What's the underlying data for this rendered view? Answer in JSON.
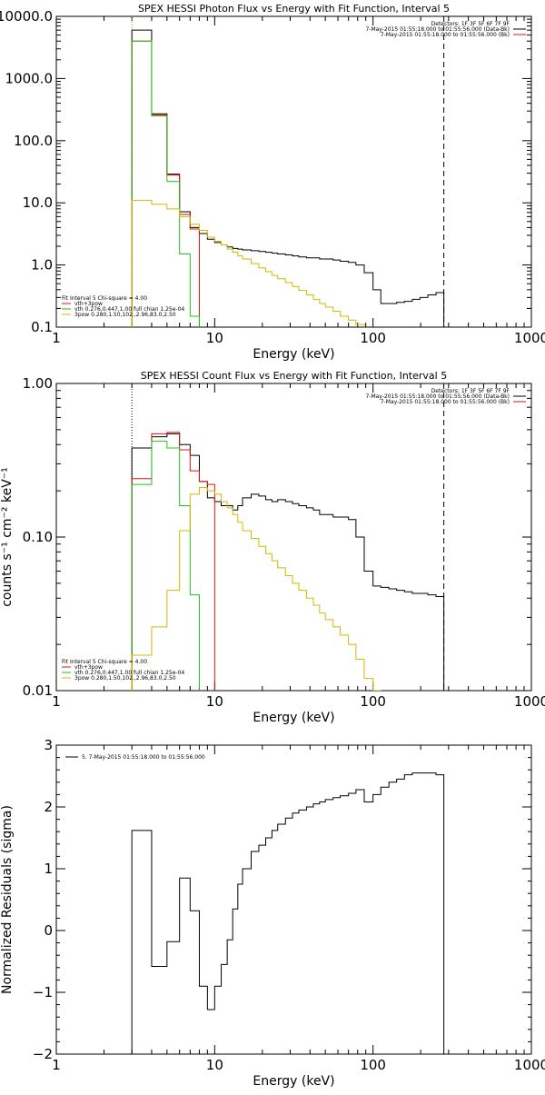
{
  "chart_data": [
    {
      "type": "line",
      "title": "SPEX HESSI Photon Flux vs Energy with Fit Function, Interval 5",
      "xlabel": "Energy (keV)",
      "ylabel": "",
      "xscale": "log",
      "yscale": "log",
      "xlim": [
        1,
        1000
      ],
      "ylim": [
        0.1,
        10000
      ],
      "xtick_labels": [
        "1",
        "10",
        "100",
        "1000"
      ],
      "ytick_labels": [
        "10000.0",
        "1000.0",
        "100.0",
        "10.0",
        "1.0",
        "0.1"
      ],
      "vlines": [
        {
          "x": 3.0,
          "style": "dotted",
          "color": "#e08000"
        },
        {
          "x": 280,
          "style": "dashed",
          "color": "#000000"
        }
      ],
      "header_lines": [
        "Detectors: 1F 3F 5F 6F 7F 9F",
        "7-May-2015 01:55:18.000 to 01:55:56.000 (Data-Bk)",
        "7-May-2015 01:55:18.000 to 01:55:56.000 (Bk)"
      ],
      "legend": [
        "Fit Interval  5    Chi-square = 4.00",
        "vth+3pow",
        "vth 0.276,0.447,1.00  full chian 1.25e-04",
        "3pow 0.280,1.50,102.,2.96,83.0,2.50"
      ],
      "series": [
        {
          "color": "#000000",
          "edges": [
            3.0,
            4.0,
            5.0,
            6.0,
            7.0,
            8.0,
            9.0,
            10.0,
            11.0,
            12.0,
            13.0,
            14.0,
            15.0,
            17.0,
            19.0,
            21.0,
            23.0,
            25.0,
            28.0,
            31.0,
            34.0,
            38.0,
            42.0,
            46.0,
            50.0,
            56.0,
            62.0,
            70.0,
            78.0,
            88.0,
            100.0,
            112.0,
            126.0,
            141.0,
            158.0,
            177.0,
            198.0,
            222.0,
            250.0,
            280.0
          ],
          "values": [
            6000,
            270,
            29,
            7.2,
            4.0,
            3.2,
            2.6,
            2.3,
            2.1,
            1.95,
            1.85,
            1.8,
            1.75,
            1.7,
            1.65,
            1.6,
            1.55,
            1.5,
            1.45,
            1.4,
            1.35,
            1.3,
            1.3,
            1.25,
            1.25,
            1.2,
            1.15,
            1.1,
            1.0,
            0.75,
            0.4,
            0.24,
            0.24,
            0.25,
            0.26,
            0.28,
            0.3,
            0.33,
            0.36
          ]
        },
        {
          "color": "#e01010",
          "edges": [
            3.0,
            4.0,
            5.0,
            6.0,
            7.0,
            8.0
          ],
          "values": [
            4000,
            260,
            28,
            6.5,
            3.8
          ]
        },
        {
          "color": "#20c020",
          "edges": [
            3.0,
            4.0,
            5.0,
            6.0,
            7.0,
            8.0
          ],
          "values": [
            4000,
            250,
            22,
            1.5,
            0.15
          ]
        },
        {
          "color": "#d4b800",
          "edges": [
            3.0,
            4.0,
            5.0,
            6.0,
            7.0,
            8.0,
            9.0,
            10.0,
            11.0,
            12.0,
            13.0,
            14.0,
            15.0,
            17.0,
            19.0,
            21.0,
            23.0,
            25.0,
            28.0,
            31.0,
            34.0,
            38.0,
            42.0,
            46.0,
            50.0,
            56.0,
            62.0,
            70.0,
            78.0,
            88.0
          ],
          "values": [
            11,
            9.5,
            8.0,
            6.0,
            4.5,
            3.6,
            2.8,
            2.4,
            2.1,
            1.8,
            1.6,
            1.4,
            1.25,
            1.05,
            0.9,
            0.78,
            0.68,
            0.6,
            0.52,
            0.45,
            0.39,
            0.33,
            0.28,
            0.24,
            0.21,
            0.18,
            0.15,
            0.13,
            0.11
          ]
        }
      ]
    },
    {
      "type": "line",
      "title": "SPEX HESSI Count Flux vs Energy with Fit Function, Interval 5",
      "xlabel": "Energy (keV)",
      "ylabel": "counts s⁻¹ cm⁻² keV⁻¹",
      "xscale": "log",
      "yscale": "log",
      "xlim": [
        1,
        1000
      ],
      "ylim": [
        0.01,
        1.0
      ],
      "xtick_labels": [
        "1",
        "10",
        "100",
        "1000"
      ],
      "ytick_labels": [
        "1.00",
        "0.10",
        "0.01"
      ],
      "vlines": [
        {
          "x": 3.0,
          "style": "dotted",
          "color": "#000000"
        },
        {
          "x": 280,
          "style": "dashed",
          "color": "#000000"
        }
      ],
      "header_lines": [
        "Detectors: 1F 3F 5F 6F 7F 9F",
        "7-May-2015 01:55:18.000 to 01:55:56.000 (Data-Bk)",
        "7-May-2015 01:55:18.000 to 01:55:56.000 (Bk)"
      ],
      "legend": [
        "Fit Interval  5    Chi-square = 4.00",
        "vth+3pow",
        "vth 0.276,0.447,1.00  full chian 1.25e-04",
        "3pow 0.280,1.50,102.,2.96,83.0,2.50"
      ],
      "series": [
        {
          "color": "#000000",
          "edges": [
            3.0,
            4.0,
            5.0,
            6.0,
            7.0,
            8.0,
            9.0,
            10.0,
            11.0,
            12.0,
            13.0,
            14.0,
            15.0,
            17.0,
            19.0,
            21.0,
            23.0,
            25.0,
            28.0,
            31.0,
            34.0,
            38.0,
            42.0,
            46.0,
            50.0,
            56.0,
            62.0,
            70.0,
            78.0,
            88.0,
            100.0,
            112.0,
            126.0,
            141.0,
            158.0,
            177.0,
            198.0,
            222.0,
            250.0,
            280.0
          ],
          "values": [
            0.38,
            0.45,
            0.47,
            0.4,
            0.34,
            0.23,
            0.18,
            0.17,
            0.16,
            0.16,
            0.15,
            0.16,
            0.18,
            0.19,
            0.185,
            0.175,
            0.17,
            0.175,
            0.17,
            0.165,
            0.16,
            0.155,
            0.15,
            0.14,
            0.14,
            0.135,
            0.135,
            0.13,
            0.1,
            0.06,
            0.048,
            0.047,
            0.046,
            0.045,
            0.044,
            0.043,
            0.043,
            0.042,
            0.041
          ]
        },
        {
          "color": "#e01010",
          "edges": [
            3.0,
            4.0,
            5.0,
            6.0,
            7.0,
            8.0,
            9.0,
            10.0
          ],
          "values": [
            0.24,
            0.47,
            0.48,
            0.37,
            0.27,
            0.23,
            0.22
          ]
        },
        {
          "color": "#20c020",
          "edges": [
            3.0,
            4.0,
            5.0,
            6.0,
            7.0,
            8.0
          ],
          "values": [
            0.22,
            0.42,
            0.38,
            0.16,
            0.042
          ]
        },
        {
          "color": "#d4b800",
          "edges": [
            3.0,
            4.0,
            5.0,
            6.0,
            7.0,
            8.0,
            9.0,
            10.0,
            11.0,
            12.0,
            13.0,
            14.0,
            15.0,
            17.0,
            19.0,
            21.0,
            23.0,
            25.0,
            28.0,
            31.0,
            34.0,
            38.0,
            42.0,
            46.0,
            50.0,
            56.0,
            62.0,
            70.0,
            78.0,
            88.0,
            100.0,
            112.0
          ],
          "values": [
            0.017,
            0.026,
            0.045,
            0.11,
            0.19,
            0.21,
            0.2,
            0.19,
            0.17,
            0.155,
            0.14,
            0.125,
            0.11,
            0.098,
            0.087,
            0.078,
            0.07,
            0.063,
            0.056,
            0.05,
            0.045,
            0.04,
            0.036,
            0.032,
            0.029,
            0.026,
            0.023,
            0.02,
            0.016,
            0.012,
            0.01
          ]
        }
      ]
    },
    {
      "type": "line",
      "title": "",
      "xlabel": "Energy (keV)",
      "ylabel": "Normalized Residuals (sigma)",
      "xscale": "log",
      "yscale": "linear",
      "xlim": [
        1,
        1000
      ],
      "ylim": [
        -2,
        3
      ],
      "xtick_labels": [
        "1",
        "10",
        "100",
        "1000"
      ],
      "ytick_labels": [
        "3",
        "2",
        "1",
        "0",
        "−1",
        "−2"
      ],
      "legend": [
        "5.  7-May-2015 01:55:18.000 to 01:55:56.000"
      ],
      "series": [
        {
          "color": "#000000",
          "edges": [
            3.0,
            4.0,
            5.0,
            6.0,
            7.0,
            8.0,
            9.0,
            10.0,
            11.0,
            12.0,
            13.0,
            14.0,
            15.0,
            17.0,
            19.0,
            21.0,
            23.0,
            25.0,
            28.0,
            31.0,
            34.0,
            38.0,
            42.0,
            46.0,
            50.0,
            56.0,
            62.0,
            70.0,
            78.0,
            88.0,
            100.0,
            112.0,
            126.0,
            141.0,
            158.0,
            177.0,
            198.0,
            222.0,
            250.0,
            280.0
          ],
          "values": [
            1.62,
            -0.58,
            -0.18,
            0.85,
            0.32,
            -0.9,
            -1.28,
            -0.9,
            -0.55,
            -0.15,
            0.35,
            0.75,
            1.0,
            1.28,
            1.38,
            1.5,
            1.62,
            1.72,
            1.82,
            1.9,
            1.95,
            2.0,
            2.05,
            2.08,
            2.12,
            2.15,
            2.18,
            2.22,
            2.28,
            2.08,
            2.2,
            2.32,
            2.4,
            2.45,
            2.52,
            2.55,
            2.55,
            2.55,
            2.52
          ]
        }
      ]
    }
  ]
}
